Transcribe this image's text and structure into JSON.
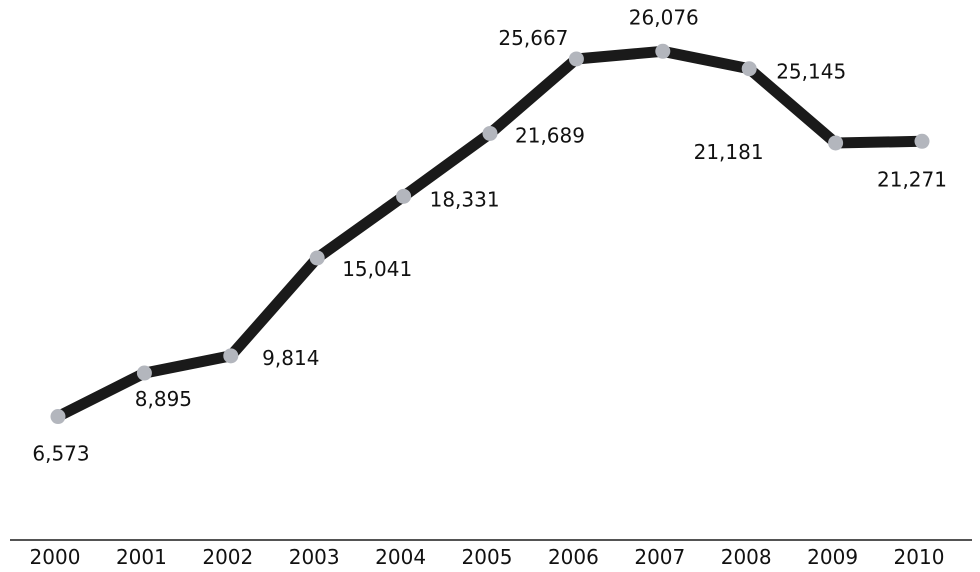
{
  "chart_data": {
    "type": "line",
    "x": [
      "2000",
      "2001",
      "2002",
      "2003",
      "2004",
      "2005",
      "2006",
      "2007",
      "2008",
      "2009",
      "2010"
    ],
    "series": [
      {
        "values": [
          6573,
          8895,
          9814,
          15041,
          18331,
          21689,
          25667,
          26076,
          25145,
          21181,
          21271
        ]
      }
    ],
    "data_labels": [
      "6,573",
      "8,895",
      "9,814",
      "15,041",
      "18,331",
      "21,689",
      "25,667",
      "26,076",
      "25,145",
      "21,181",
      "21,271"
    ],
    "title": "",
    "xlabel": "",
    "ylabel": "",
    "grid": false,
    "legend": "none",
    "colors": {
      "line": "#1a1a1a",
      "marker": "#b3b6bd",
      "axis": "#1a1a1a",
      "text": "#111111"
    }
  }
}
